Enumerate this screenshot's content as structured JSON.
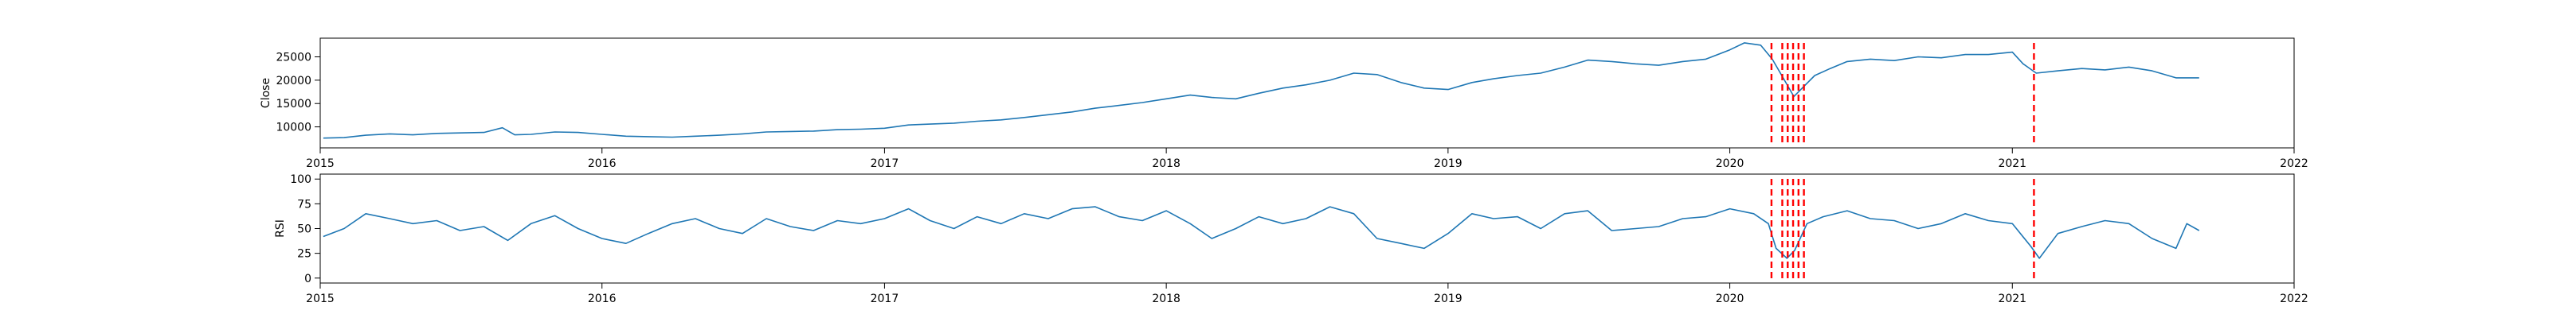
{
  "chart_data": [
    {
      "type": "line",
      "title": "",
      "xlabel": "",
      "ylabel": "Close",
      "xlim": [
        "2015-01-01",
        "2022-01-01"
      ],
      "ylim": [
        5500,
        29000
      ],
      "yticks": [
        10000,
        15000,
        20000,
        25000
      ],
      "xticks": [
        "2015",
        "2016",
        "2017",
        "2018",
        "2019",
        "2020",
        "2021",
        "2022"
      ],
      "grid": false,
      "series_color": "#1f77b4",
      "series": [
        {
          "points": [
            [
              "2015-01-05",
              7600
            ],
            [
              "2015-02-01",
              7700
            ],
            [
              "2015-03-01",
              8200
            ],
            [
              "2015-04-01",
              8500
            ],
            [
              "2015-05-01",
              8300
            ],
            [
              "2015-06-01",
              8600
            ],
            [
              "2015-07-01",
              8700
            ],
            [
              "2015-08-01",
              8800
            ],
            [
              "2015-08-25",
              9800
            ],
            [
              "2015-09-10",
              8300
            ],
            [
              "2015-10-01",
              8400
            ],
            [
              "2015-11-01",
              8900
            ],
            [
              "2015-12-01",
              8800
            ],
            [
              "2016-01-01",
              8400
            ],
            [
              "2016-02-01",
              8000
            ],
            [
              "2016-03-01",
              7900
            ],
            [
              "2016-04-01",
              7800
            ],
            [
              "2016-05-01",
              8000
            ],
            [
              "2016-06-01",
              8200
            ],
            [
              "2016-07-01",
              8500
            ],
            [
              "2016-08-01",
              8900
            ],
            [
              "2016-09-01",
              9000
            ],
            [
              "2016-10-01",
              9100
            ],
            [
              "2016-11-01",
              9400
            ],
            [
              "2016-12-01",
              9500
            ],
            [
              "2017-01-01",
              9700
            ],
            [
              "2017-02-01",
              10400
            ],
            [
              "2017-03-01",
              10600
            ],
            [
              "2017-04-01",
              10800
            ],
            [
              "2017-05-01",
              11200
            ],
            [
              "2017-06-01",
              11500
            ],
            [
              "2017-07-01",
              12000
            ],
            [
              "2017-08-01",
              12600
            ],
            [
              "2017-09-01",
              13200
            ],
            [
              "2017-10-01",
              14000
            ],
            [
              "2017-11-01",
              14600
            ],
            [
              "2017-12-01",
              15200
            ],
            [
              "2018-01-01",
              16000
            ],
            [
              "2018-02-01",
              16800
            ],
            [
              "2018-03-01",
              16300
            ],
            [
              "2018-04-01",
              16000
            ],
            [
              "2018-05-01",
              17200
            ],
            [
              "2018-06-01",
              18300
            ],
            [
              "2018-07-01",
              19000
            ],
            [
              "2018-08-01",
              20000
            ],
            [
              "2018-09-01",
              21500
            ],
            [
              "2018-10-01",
              21200
            ],
            [
              "2018-11-01",
              19500
            ],
            [
              "2018-12-01",
              18300
            ],
            [
              "2019-01-01",
              18000
            ],
            [
              "2019-02-01",
              19500
            ],
            [
              "2019-03-01",
              20300
            ],
            [
              "2019-04-01",
              21000
            ],
            [
              "2019-05-01",
              21500
            ],
            [
              "2019-06-01",
              22800
            ],
            [
              "2019-07-01",
              24300
            ],
            [
              "2019-08-01",
              24000
            ],
            [
              "2019-09-01",
              23500
            ],
            [
              "2019-10-01",
              23200
            ],
            [
              "2019-11-01",
              24000
            ],
            [
              "2019-12-01",
              24500
            ],
            [
              "2020-01-01",
              26500
            ],
            [
              "2020-01-20",
              28000
            ],
            [
              "2020-02-10",
              27500
            ],
            [
              "2020-02-25",
              24500
            ],
            [
              "2020-03-10",
              20500
            ],
            [
              "2020-03-24",
              16500
            ],
            [
              "2020-04-05",
              18500
            ],
            [
              "2020-04-20",
              21000
            ],
            [
              "2020-05-10",
              22500
            ],
            [
              "2020-06-01",
              24000
            ],
            [
              "2020-07-01",
              24500
            ],
            [
              "2020-08-01",
              24200
            ],
            [
              "2020-09-01",
              25000
            ],
            [
              "2020-10-01",
              24800
            ],
            [
              "2020-11-01",
              25500
            ],
            [
              "2020-12-01",
              25500
            ],
            [
              "2021-01-01",
              26000
            ],
            [
              "2021-01-15",
              23500
            ],
            [
              "2021-02-01",
              21500
            ],
            [
              "2021-03-01",
              22000
            ],
            [
              "2021-04-01",
              22500
            ],
            [
              "2021-05-01",
              22200
            ],
            [
              "2021-06-01",
              22800
            ],
            [
              "2021-07-01",
              22000
            ],
            [
              "2021-08-01",
              20500
            ],
            [
              "2021-08-31",
              20500
            ]
          ]
        }
      ],
      "event_color": "#ff0000",
      "event_dates": [
        "2020-02-24",
        "2020-03-09",
        "2020-03-16",
        "2020-03-23",
        "2020-03-30",
        "2020-04-06",
        "2021-01-29"
      ]
    },
    {
      "type": "line",
      "title": "",
      "xlabel": "",
      "ylabel": "RSI",
      "xlim": [
        "2015-01-01",
        "2022-01-01"
      ],
      "ylim": [
        -5,
        105
      ],
      "yticks": [
        0,
        25,
        50,
        75,
        100
      ],
      "xticks": [
        "2015",
        "2016",
        "2017",
        "2018",
        "2019",
        "2020",
        "2021",
        "2022"
      ],
      "grid": false,
      "series_color": "#1f77b4",
      "series": [
        {
          "points": [
            [
              "2015-01-05",
              42
            ],
            [
              "2015-02-01",
              50
            ],
            [
              "2015-03-01",
              65
            ],
            [
              "2015-04-01",
              60
            ],
            [
              "2015-05-01",
              55
            ],
            [
              "2015-06-01",
              58
            ],
            [
              "2015-07-01",
              48
            ],
            [
              "2015-08-01",
              52
            ],
            [
              "2015-09-01",
              38
            ],
            [
              "2015-10-01",
              55
            ],
            [
              "2015-11-01",
              63
            ],
            [
              "2015-12-01",
              50
            ],
            [
              "2016-01-01",
              40
            ],
            [
              "2016-02-01",
              35
            ],
            [
              "2016-03-01",
              45
            ],
            [
              "2016-04-01",
              55
            ],
            [
              "2016-05-01",
              60
            ],
            [
              "2016-06-01",
              50
            ],
            [
              "2016-07-01",
              45
            ],
            [
              "2016-08-01",
              60
            ],
            [
              "2016-09-01",
              52
            ],
            [
              "2016-10-01",
              48
            ],
            [
              "2016-11-01",
              58
            ],
            [
              "2016-12-01",
              55
            ],
            [
              "2017-01-01",
              60
            ],
            [
              "2017-02-01",
              70
            ],
            [
              "2017-03-01",
              58
            ],
            [
              "2017-04-01",
              50
            ],
            [
              "2017-05-01",
              62
            ],
            [
              "2017-06-01",
              55
            ],
            [
              "2017-07-01",
              65
            ],
            [
              "2017-08-01",
              60
            ],
            [
              "2017-09-01",
              70
            ],
            [
              "2017-10-01",
              72
            ],
            [
              "2017-11-01",
              62
            ],
            [
              "2017-12-01",
              58
            ],
            [
              "2018-01-01",
              68
            ],
            [
              "2018-02-01",
              55
            ],
            [
              "2018-03-01",
              40
            ],
            [
              "2018-04-01",
              50
            ],
            [
              "2018-05-01",
              62
            ],
            [
              "2018-06-01",
              55
            ],
            [
              "2018-07-01",
              60
            ],
            [
              "2018-08-01",
              72
            ],
            [
              "2018-09-01",
              65
            ],
            [
              "2018-10-01",
              40
            ],
            [
              "2018-11-01",
              35
            ],
            [
              "2018-12-01",
              30
            ],
            [
              "2019-01-01",
              45
            ],
            [
              "2019-02-01",
              65
            ],
            [
              "2019-03-01",
              60
            ],
            [
              "2019-04-01",
              62
            ],
            [
              "2019-05-01",
              50
            ],
            [
              "2019-06-01",
              65
            ],
            [
              "2019-07-01",
              68
            ],
            [
              "2019-08-01",
              48
            ],
            [
              "2019-09-01",
              50
            ],
            [
              "2019-10-01",
              52
            ],
            [
              "2019-11-01",
              60
            ],
            [
              "2019-12-01",
              62
            ],
            [
              "2020-01-01",
              70
            ],
            [
              "2020-02-01",
              65
            ],
            [
              "2020-02-20",
              55
            ],
            [
              "2020-03-01",
              30
            ],
            [
              "2020-03-15",
              20
            ],
            [
              "2020-03-25",
              28
            ],
            [
              "2020-04-10",
              55
            ],
            [
              "2020-05-01",
              62
            ],
            [
              "2020-06-01",
              68
            ],
            [
              "2020-07-01",
              60
            ],
            [
              "2020-08-01",
              58
            ],
            [
              "2020-09-01",
              50
            ],
            [
              "2020-10-01",
              55
            ],
            [
              "2020-11-01",
              65
            ],
            [
              "2020-12-01",
              58
            ],
            [
              "2021-01-01",
              55
            ],
            [
              "2021-01-25",
              32
            ],
            [
              "2021-02-05",
              20
            ],
            [
              "2021-03-01",
              45
            ],
            [
              "2021-04-01",
              52
            ],
            [
              "2021-05-01",
              58
            ],
            [
              "2021-06-01",
              55
            ],
            [
              "2021-07-01",
              40
            ],
            [
              "2021-08-01",
              30
            ],
            [
              "2021-08-15",
              55
            ],
            [
              "2021-08-31",
              48
            ]
          ]
        }
      ],
      "event_color": "#ff0000",
      "event_dates": [
        "2020-02-24",
        "2020-03-09",
        "2020-03-16",
        "2020-03-23",
        "2020-03-30",
        "2020-04-06",
        "2021-01-29"
      ]
    }
  ]
}
